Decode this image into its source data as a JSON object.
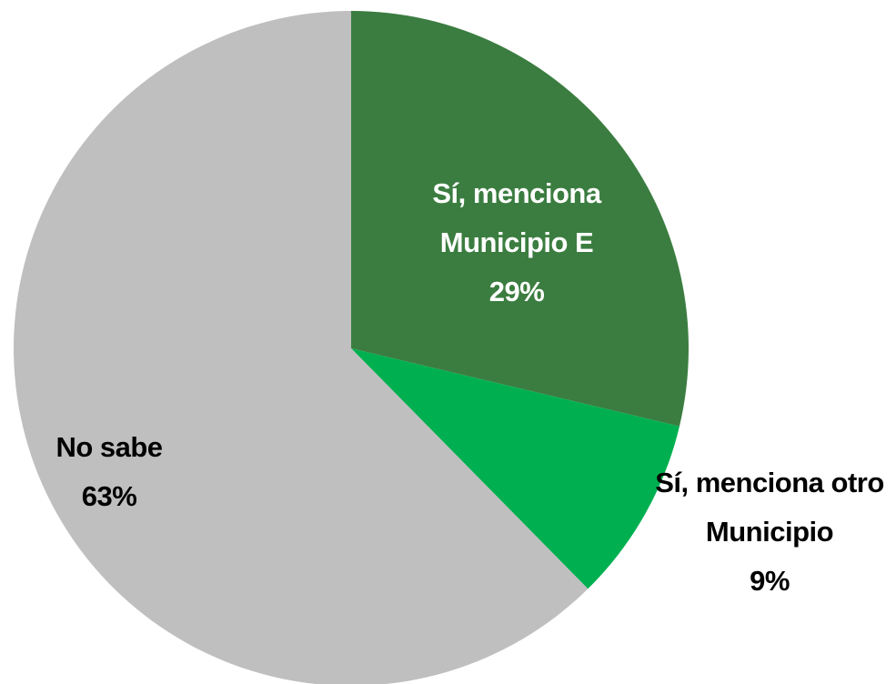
{
  "chart_data": {
    "type": "pie",
    "categories": [
      "Sí, menciona Municipio E",
      "Sí, menciona otro Municipio",
      "No sabe"
    ],
    "values": [
      29,
      9,
      63
    ],
    "value_labels": [
      "29%",
      "9%",
      "63%"
    ],
    "colors": [
      "#3b7d40",
      "#00b050",
      "#bfbfbf"
    ]
  }
}
